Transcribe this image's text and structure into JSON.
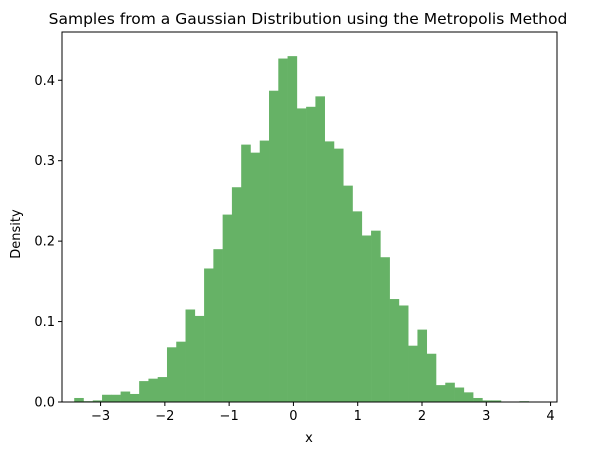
{
  "chart_data": {
    "type": "bar",
    "title": "Samples from a Gaussian Distribution using the Metropolis Method",
    "xlabel": "x",
    "ylabel": "Density",
    "xlim": [
      -3.6,
      4.1
    ],
    "ylim": [
      0,
      0.46
    ],
    "xticks": [
      -3,
      -2,
      -1,
      0,
      1,
      2,
      3,
      4
    ],
    "xtick_labels": [
      "−3",
      "−2",
      "−1",
      "0",
      "1",
      "2",
      "3",
      "4"
    ],
    "yticks": [
      0.0,
      0.1,
      0.2,
      0.3,
      0.4
    ],
    "ytick_labels": [
      "0.0",
      "0.1",
      "0.2",
      "0.3",
      "0.4"
    ],
    "grid": false,
    "bar_color": "#66b266",
    "bin_start": -3.41,
    "bin_width": 0.1443,
    "values": [
      0.005,
      0.001,
      0.002,
      0.009,
      0.009,
      0.013,
      0.01,
      0.026,
      0.029,
      0.031,
      0.068,
      0.075,
      0.115,
      0.107,
      0.166,
      0.19,
      0.233,
      0.267,
      0.32,
      0.31,
      0.325,
      0.387,
      0.427,
      0.43,
      0.365,
      0.367,
      0.38,
      0.324,
      0.315,
      0.269,
      0.237,
      0.207,
      0.213,
      0.18,
      0.128,
      0.12,
      0.07,
      0.09,
      0.06,
      0.021,
      0.024,
      0.018,
      0.012,
      0.005,
      0.002,
      0.002,
      0.0,
      0.0,
      0.001,
      0.0,
      0.0
    ]
  }
}
